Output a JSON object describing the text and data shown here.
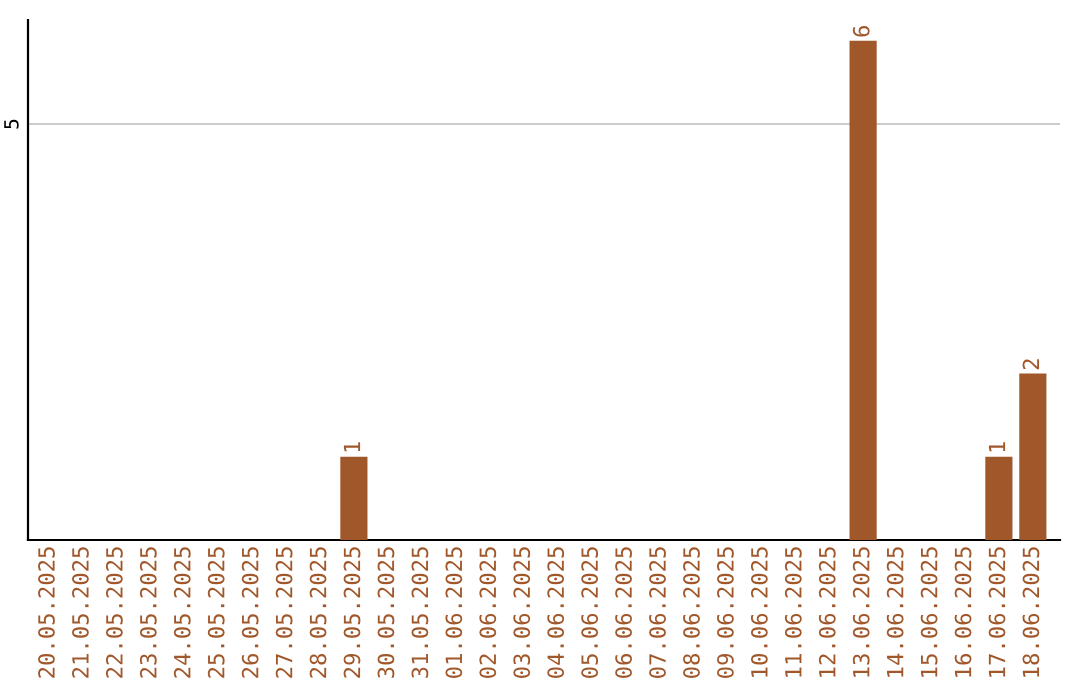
{
  "chart_data": {
    "type": "bar",
    "categories": [
      "20.05.2025",
      "21.05.2025",
      "22.05.2025",
      "23.05.2025",
      "24.05.2025",
      "25.05.2025",
      "26.05.2025",
      "27.05.2025",
      "28.05.2025",
      "29.05.2025",
      "30.05.2025",
      "31.05.2025",
      "01.06.2025",
      "02.06.2025",
      "03.06.2025",
      "04.06.2025",
      "05.06.2025",
      "06.06.2025",
      "07.06.2025",
      "08.06.2025",
      "09.06.2025",
      "10.06.2025",
      "11.06.2025",
      "12.06.2025",
      "13.06.2025",
      "14.06.2025",
      "15.06.2025",
      "16.06.2025",
      "17.06.2025",
      "18.06.2025"
    ],
    "values": [
      0,
      0,
      0,
      0,
      0,
      0,
      0,
      0,
      0,
      1,
      0,
      0,
      0,
      0,
      0,
      0,
      0,
      0,
      0,
      0,
      0,
      0,
      0,
      0,
      6,
      0,
      0,
      0,
      1,
      2
    ],
    "value_labels": [
      null,
      null,
      null,
      null,
      null,
      null,
      null,
      null,
      null,
      "1",
      null,
      null,
      null,
      null,
      null,
      null,
      null,
      null,
      null,
      null,
      null,
      null,
      null,
      null,
      "6",
      null,
      null,
      null,
      "1",
      "2"
    ],
    "color": "#a0572a",
    "ylim": [
      0,
      6.25
    ],
    "yticks": [
      5
    ],
    "grid": "y"
  }
}
